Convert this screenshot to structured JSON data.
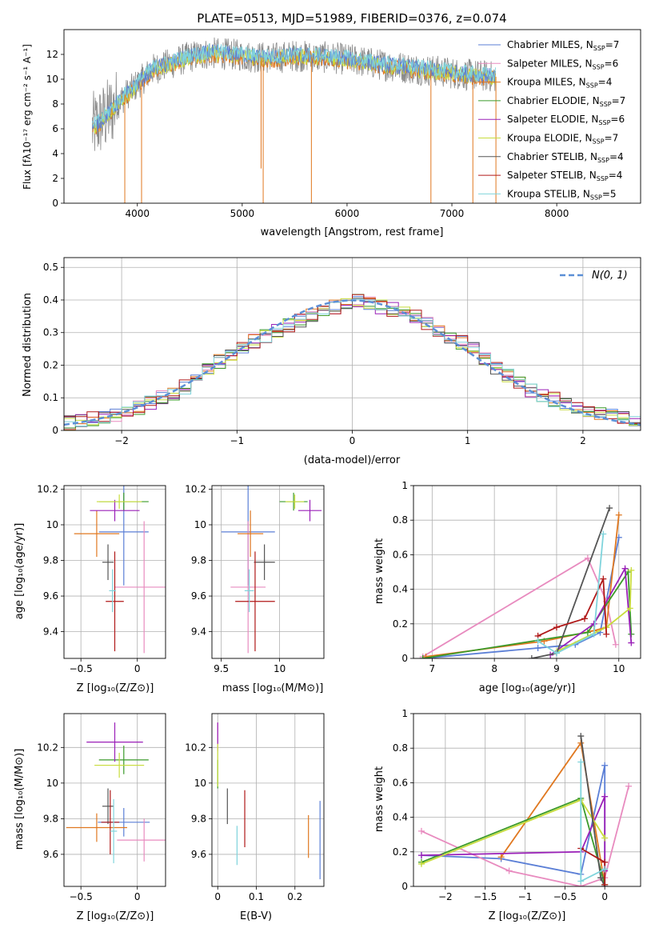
{
  "colors": {
    "chabrier_miles": "#5b7fd6",
    "salpeter_miles": "#e88bbf",
    "kroupa_miles": "#e07820",
    "chabrier_elodie": "#3a9a2a",
    "salpeter_elodie": "#9a20b8",
    "kroupa_elodie": "#c8dc3c",
    "chabrier_stelib": "#555555",
    "salpeter_stelib": "#b01818",
    "kroupa_stelib": "#80d4dc",
    "gaussian": "#5b8fd6",
    "observed_spectrum": "#888888"
  },
  "chart_data": [
    {
      "id": "spectrum",
      "type": "line",
      "title": "PLATE=0513, MJD=51989, FIBERID=0376, z=0.074",
      "xlabel": "wavelength [Angstrom, rest frame]",
      "ylabel": "Flux [fλ10⁻¹⁷ erg cm⁻² s⁻¹ A⁻¹]",
      "xlim": [
        3300,
        8800
      ],
      "ylim": [
        0,
        14
      ],
      "xticks": [
        4000,
        5000,
        6000,
        7000,
        8000
      ],
      "yticks": [
        0,
        2,
        4,
        6,
        8,
        10,
        12
      ],
      "grid": false,
      "legend_position": "right",
      "legend": [
        {
          "library": "Chabrier MILES",
          "n": "7",
          "color_key": "chabrier_miles"
        },
        {
          "library": "Salpeter MILES",
          "n": "6",
          "color_key": "salpeter_miles"
        },
        {
          "library": "Kroupa MILES",
          "n": "4",
          "color_key": "kroupa_miles"
        },
        {
          "library": "Chabrier ELODIE",
          "n": "7",
          "color_key": "chabrier_elodie"
        },
        {
          "library": "Salpeter ELODIE",
          "n": "6",
          "color_key": "salpeter_elodie"
        },
        {
          "library": "Kroupa ELODIE",
          "n": "7",
          "color_key": "kroupa_elodie"
        },
        {
          "library": "Chabrier STELIB",
          "n": "4",
          "color_key": "chabrier_stelib"
        },
        {
          "library": "Salpeter STELIB",
          "n": "4",
          "color_key": "salpeter_stelib"
        },
        {
          "library": "Kroupa STELIB",
          "n": "5",
          "color_key": "kroupa_stelib"
        }
      ],
      "continuum_model": {
        "wavelength": [
          3570,
          3700,
          3850,
          4000,
          4150,
          4300,
          4500,
          4700,
          4900,
          5100,
          5300,
          5500,
          5700,
          5900,
          6100,
          6300,
          6500,
          6700,
          6900,
          7100,
          7250,
          7400
        ],
        "flux": [
          6.0,
          7.0,
          8.4,
          9.6,
          10.8,
          11.2,
          11.8,
          12.1,
          12.0,
          11.8,
          11.7,
          11.9,
          11.8,
          11.7,
          11.5,
          11.2,
          11.0,
          10.8,
          10.6,
          10.4,
          10.3,
          10.2
        ]
      },
      "absorption_features": [
        {
          "wavelength": 3880,
          "flux": 0.0
        },
        {
          "wavelength": 4040,
          "flux": 0.0
        },
        {
          "wavelength": 5180,
          "flux": 2.8
        },
        {
          "wavelength": 5200,
          "flux": 0.0
        },
        {
          "wavelength": 5660,
          "flux": 0.0
        },
        {
          "wavelength": 6800,
          "flux": 0.0
        },
        {
          "wavelength": 7200,
          "flux": 0.0
        },
        {
          "wavelength": 7420,
          "flux": 0.0
        }
      ]
    },
    {
      "id": "residuals",
      "type": "line",
      "xlabel": "(data-model)/error",
      "ylabel": "Normed distribution",
      "xlim": [
        -2.5,
        2.5
      ],
      "ylim": [
        0,
        0.53
      ],
      "xticks": [
        -2,
        -1,
        0,
        1,
        2
      ],
      "yticks": [
        0.0,
        0.1,
        0.2,
        0.3,
        0.4,
        0.5
      ],
      "grid": true,
      "legend_position": "top-right",
      "gaussian": {
        "label": "N(0, 1)",
        "mean": 0,
        "sigma": 1
      },
      "histogram_profile": {
        "x": [
          -2.5,
          -2.0,
          -1.5,
          -1.0,
          -0.5,
          0.0,
          0.5,
          1.0,
          1.5,
          2.0,
          2.5
        ],
        "y": [
          0.02,
          0.05,
          0.12,
          0.25,
          0.33,
          0.4,
          0.36,
          0.26,
          0.13,
          0.06,
          0.03
        ]
      }
    },
    {
      "id": "age-vs-Z",
      "type": "scatter",
      "xlabel": "Z [log₁₀(Z/Z⊙)]",
      "ylabel": "age  [log₁₀(age/yr)]",
      "xlim": [
        -0.65,
        0.25
      ],
      "ylim": [
        9.25,
        10.22
      ],
      "xticks": [
        -0.5,
        0.0
      ],
      "yticks": [
        9.4,
        9.6,
        9.8,
        10.0,
        10.2
      ],
      "grid": true,
      "points": [
        {
          "color_key": "chabrier_miles",
          "x": -0.12,
          "y": 9.96,
          "xerr": 0.22,
          "yerr": 0.3
        },
        {
          "color_key": "salpeter_miles",
          "x": 0.06,
          "y": 9.65,
          "xerr": 0.26,
          "yerr": 0.37
        },
        {
          "color_key": "kroupa_miles",
          "x": -0.36,
          "y": 9.95,
          "xerr": 0.2,
          "yerr": 0.13
        },
        {
          "color_key": "chabrier_elodie",
          "x": -0.12,
          "y": 10.13,
          "xerr": 0.22,
          "yerr": 0.05
        },
        {
          "color_key": "salpeter_elodie",
          "x": -0.2,
          "y": 10.08,
          "xerr": 0.22,
          "yerr": 0.06
        },
        {
          "color_key": "kroupa_elodie",
          "x": -0.16,
          "y": 10.13,
          "xerr": 0.2,
          "yerr": 0.04
        },
        {
          "color_key": "chabrier_stelib",
          "x": -0.26,
          "y": 9.79,
          "xerr": 0.05,
          "yerr": 0.1
        },
        {
          "color_key": "salpeter_stelib",
          "x": -0.2,
          "y": 9.57,
          "xerr": 0.08,
          "yerr": 0.28
        },
        {
          "color_key": "kroupa_stelib",
          "x": -0.22,
          "y": 9.63,
          "xerr": 0.03,
          "yerr": 0.12
        }
      ]
    },
    {
      "id": "age-vs-mass",
      "type": "scatter",
      "xlabel": "mass [log₁₀(M/M⊙)]",
      "ylabel": "",
      "xlim": [
        9.42,
        10.38
      ],
      "ylim": [
        9.25,
        10.22
      ],
      "xticks": [
        9.5,
        10.0
      ],
      "yticks": [
        9.4,
        9.6,
        9.8,
        10.0,
        10.2
      ],
      "grid": true,
      "points": [
        {
          "color_key": "chabrier_miles",
          "x": 9.73,
          "y": 9.96,
          "xerr": 0.23,
          "yerr": 0.3
        },
        {
          "color_key": "salpeter_miles",
          "x": 9.73,
          "y": 9.65,
          "xerr": 0.15,
          "yerr": 0.37
        },
        {
          "color_key": "kroupa_miles",
          "x": 9.75,
          "y": 9.95,
          "xerr": 0.11,
          "yerr": 0.13
        },
        {
          "color_key": "chabrier_elodie",
          "x": 10.12,
          "y": 10.13,
          "xerr": 0.12,
          "yerr": 0.05
        },
        {
          "color_key": "salpeter_elodie",
          "x": 10.26,
          "y": 10.08,
          "xerr": 0.1,
          "yerr": 0.06
        },
        {
          "color_key": "kroupa_elodie",
          "x": 10.13,
          "y": 10.13,
          "xerr": 0.08,
          "yerr": 0.04
        },
        {
          "color_key": "chabrier_stelib",
          "x": 9.87,
          "y": 9.79,
          "xerr": 0.09,
          "yerr": 0.1
        },
        {
          "color_key": "salpeter_stelib",
          "x": 9.79,
          "y": 9.57,
          "xerr": 0.17,
          "yerr": 0.28
        },
        {
          "color_key": "kroupa_stelib",
          "x": 9.74,
          "y": 9.63,
          "xerr": 0.04,
          "yerr": 0.12
        }
      ]
    },
    {
      "id": "weight-vs-age",
      "type": "line",
      "xlabel": "age  [log₁₀(age/yr)]",
      "ylabel": "mass weight",
      "xlim": [
        6.7,
        10.35
      ],
      "ylim": [
        0,
        1.0
      ],
      "xticks": [
        7,
        8,
        9,
        10
      ],
      "yticks": [
        0.0,
        0.2,
        0.4,
        0.6,
        0.8,
        1.0
      ],
      "grid": true,
      "series": [
        {
          "color_key": "chabrier_miles",
          "x": [
            6.85,
            8.7,
            9.3,
            9.7,
            10.0
          ],
          "y": [
            0.0,
            0.06,
            0.08,
            0.15,
            0.7
          ]
        },
        {
          "color_key": "salpeter_miles",
          "x": [
            6.85,
            9.5,
            9.8,
            9.95
          ],
          "y": [
            0.01,
            0.58,
            0.33,
            0.08
          ]
        },
        {
          "color_key": "kroupa_miles",
          "x": [
            6.9,
            8.8,
            9.6,
            9.8,
            10.0
          ],
          "y": [
            0.01,
            0.1,
            0.16,
            0.18,
            0.83
          ]
        },
        {
          "color_key": "chabrier_elodie",
          "x": [
            6.85,
            9.5,
            10.15,
            10.2
          ],
          "y": [
            0.0,
            0.15,
            0.5,
            0.14
          ]
        },
        {
          "color_key": "salpeter_elodie",
          "x": [
            8.9,
            9.6,
            10.1,
            10.2
          ],
          "y": [
            0.02,
            0.2,
            0.52,
            0.09
          ]
        },
        {
          "color_key": "kroupa_elodie",
          "x": [
            9.0,
            9.8,
            10.18,
            10.2
          ],
          "y": [
            0.04,
            0.18,
            0.29,
            0.51
          ]
        },
        {
          "color_key": "chabrier_stelib",
          "x": [
            8.6,
            9.0,
            9.85
          ],
          "y": [
            0.0,
            0.03,
            0.87
          ]
        },
        {
          "color_key": "salpeter_stelib",
          "x": [
            8.7,
            9.0,
            9.45,
            9.75,
            9.8
          ],
          "y": [
            0.13,
            0.18,
            0.23,
            0.46,
            0.14
          ]
        },
        {
          "color_key": "kroupa_stelib",
          "x": [
            8.7,
            9.0,
            9.6,
            9.75
          ],
          "y": [
            0.1,
            0.03,
            0.14,
            0.72
          ]
        }
      ]
    },
    {
      "id": "mass-vs-Z",
      "type": "scatter",
      "xlabel": "Z [log₁₀(Z/Z⊙)]",
      "ylabel": "mass [log₁₀(M/M⊙)]",
      "xlim": [
        -0.65,
        0.25
      ],
      "ylim": [
        9.42,
        10.39
      ],
      "xticks": [
        -0.5,
        0.0
      ],
      "yticks": [
        9.6,
        9.8,
        10.0,
        10.2
      ],
      "grid": true,
      "points": [
        {
          "color_key": "chabrier_miles",
          "x": -0.12,
          "y": 9.78,
          "xerr": 0.23,
          "yerr": 0.08
        },
        {
          "color_key": "salpeter_miles",
          "x": 0.06,
          "y": 9.68,
          "xerr": 0.24,
          "yerr": 0.12
        },
        {
          "color_key": "kroupa_miles",
          "x": -0.36,
          "y": 9.75,
          "xerr": 0.27,
          "yerr": 0.08
        },
        {
          "color_key": "chabrier_elodie",
          "x": -0.12,
          "y": 10.13,
          "xerr": 0.22,
          "yerr": 0.08
        },
        {
          "color_key": "salpeter_elodie",
          "x": -0.2,
          "y": 10.23,
          "xerr": 0.25,
          "yerr": 0.11
        },
        {
          "color_key": "kroupa_elodie",
          "x": -0.16,
          "y": 10.1,
          "xerr": 0.22,
          "yerr": 0.07
        },
        {
          "color_key": "chabrier_stelib",
          "x": -0.26,
          "y": 9.87,
          "xerr": 0.05,
          "yerr": 0.1
        },
        {
          "color_key": "salpeter_stelib",
          "x": -0.24,
          "y": 9.78,
          "xerr": 0.08,
          "yerr": 0.18
        },
        {
          "color_key": "kroupa_stelib",
          "x": -0.21,
          "y": 9.73,
          "xerr": 0.03,
          "yerr": 0.18
        }
      ]
    },
    {
      "id": "mass-vs-ebv",
      "type": "scatter",
      "xlabel": "E(B-V)",
      "ylabel": "",
      "xlim": [
        -0.015,
        0.275
      ],
      "ylim": [
        9.42,
        10.39
      ],
      "xticks": [
        0.0,
        0.1,
        0.2
      ],
      "yticks": [
        9.6,
        9.8,
        10.0,
        10.2
      ],
      "grid": true,
      "points": [
        {
          "color_key": "chabrier_miles",
          "x": 0.265,
          "y": 9.68,
          "xerr": 0.0,
          "yerr": 0.22
        },
        {
          "color_key": "salpeter_miles",
          "x": 0.0,
          "y": 10.26,
          "xerr": 0.0,
          "yerr": 0.08
        },
        {
          "color_key": "kroupa_miles",
          "x": 0.235,
          "y": 9.7,
          "xerr": 0.0,
          "yerr": 0.12
        },
        {
          "color_key": "chabrier_elodie",
          "x": 0.0,
          "y": 10.05,
          "xerr": 0.0,
          "yerr": 0.08
        },
        {
          "color_key": "salpeter_elodie",
          "x": 0.0,
          "y": 10.28,
          "xerr": 0.0,
          "yerr": 0.06
        },
        {
          "color_key": "kroupa_elodie",
          "x": 0.0,
          "y": 10.1,
          "xerr": 0.0,
          "yerr": 0.12
        },
        {
          "color_key": "chabrier_stelib",
          "x": 0.025,
          "y": 9.87,
          "xerr": 0.0,
          "yerr": 0.1
        },
        {
          "color_key": "salpeter_stelib",
          "x": 0.07,
          "y": 9.8,
          "xerr": 0.0,
          "yerr": 0.16
        },
        {
          "color_key": "kroupa_stelib",
          "x": 0.05,
          "y": 9.65,
          "xerr": 0.0,
          "yerr": 0.11
        }
      ]
    },
    {
      "id": "weight-vs-Z",
      "type": "line",
      "xlabel": "Z [log₁₀(Z/Z⊙)]",
      "ylabel": "mass weight",
      "xlim": [
        -2.4,
        0.45
      ],
      "ylim": [
        0,
        1.0
      ],
      "xticks": [
        -2.0,
        -1.5,
        -1.0,
        -0.5,
        0.0
      ],
      "yticks": [
        0.0,
        0.2,
        0.4,
        0.6,
        0.8,
        1.0
      ],
      "grid": true,
      "series": [
        {
          "color_key": "chabrier_miles",
          "x": [
            -2.3,
            -1.3,
            -0.3,
            0.0,
            0.0
          ],
          "y": [
            0.18,
            0.16,
            0.07,
            0.7,
            0.0
          ]
        },
        {
          "color_key": "salpeter_miles",
          "x": [
            -2.3,
            -1.2,
            -0.3,
            0.0,
            0.3
          ],
          "y": [
            0.32,
            0.09,
            0.0,
            0.05,
            0.58
          ]
        },
        {
          "color_key": "kroupa_miles",
          "x": [
            -1.3,
            -0.3,
            0.0
          ],
          "y": [
            0.17,
            0.83,
            0.01
          ]
        },
        {
          "color_key": "chabrier_elodie",
          "x": [
            -2.3,
            -0.3,
            0.0
          ],
          "y": [
            0.14,
            0.51,
            0.01
          ]
        },
        {
          "color_key": "salpeter_elodie",
          "x": [
            -2.3,
            -0.3,
            0.0,
            0.0
          ],
          "y": [
            0.18,
            0.2,
            0.52,
            0.09
          ]
        },
        {
          "color_key": "kroupa_elodie",
          "x": [
            -2.3,
            -0.3,
            0.0
          ],
          "y": [
            0.13,
            0.5,
            0.28
          ]
        },
        {
          "color_key": "chabrier_stelib",
          "x": [
            -0.3,
            -0.05,
            0.0
          ],
          "y": [
            0.87,
            0.05,
            0.0
          ]
        },
        {
          "color_key": "salpeter_stelib",
          "x": [
            -0.3,
            0.0,
            0.0
          ],
          "y": [
            0.22,
            0.14,
            0.01
          ]
        },
        {
          "color_key": "kroupa_stelib",
          "x": [
            -0.3,
            -0.3,
            0.0
          ],
          "y": [
            0.72,
            0.03,
            0.1
          ]
        }
      ]
    }
  ]
}
